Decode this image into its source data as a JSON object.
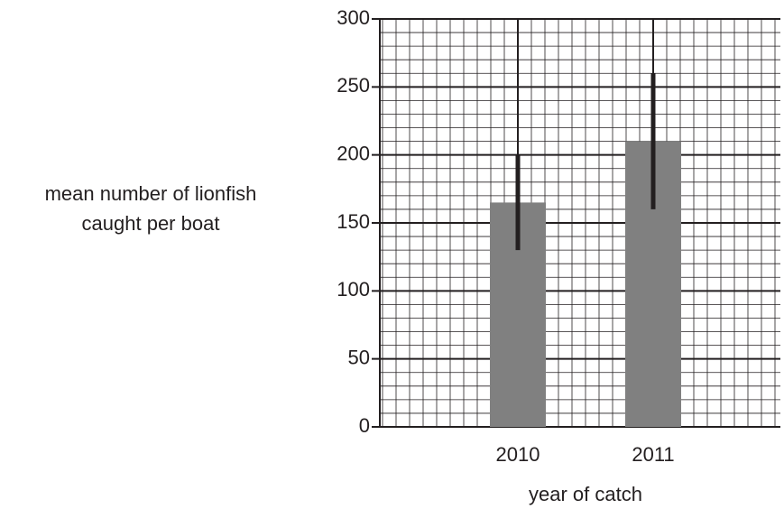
{
  "chart_data": {
    "type": "bar",
    "ylabel": "mean number of lionfish caught per boat",
    "xlabel": "year of catch",
    "categories": [
      "2010",
      "2011"
    ],
    "values": [
      165,
      210
    ],
    "errors": [
      35,
      50
    ],
    "color": "#808080",
    "error_color": "#231f20",
    "ylim": [
      0,
      300
    ],
    "yticks": [
      0,
      50,
      100,
      150,
      200,
      250,
      300
    ],
    "grid": true
  }
}
